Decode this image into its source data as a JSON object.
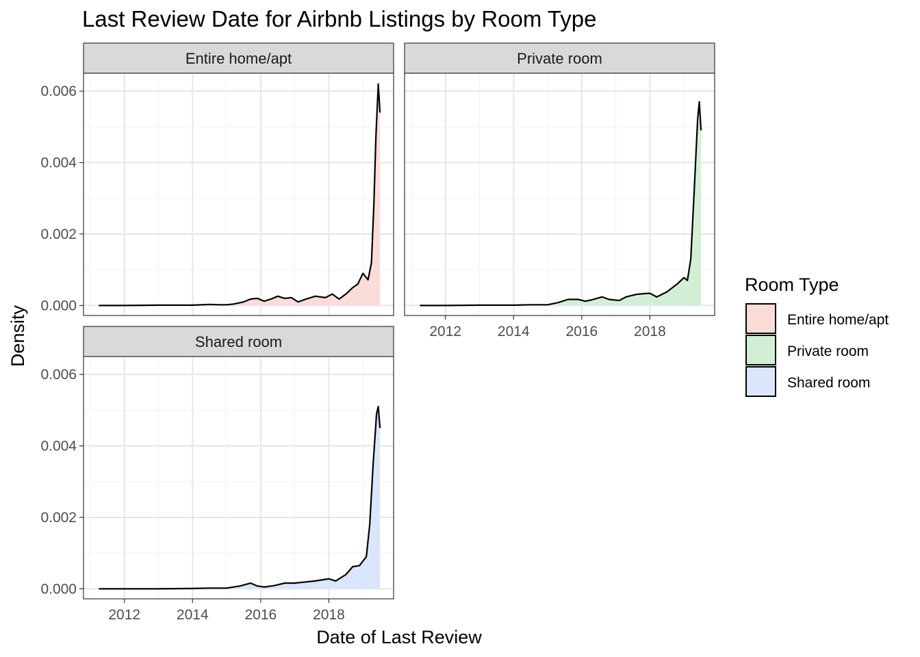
{
  "chart_data": {
    "type": "area",
    "title": "Last Review Date for Airbnb Listings by Room Type",
    "xlabel": "Date of Last Review",
    "ylabel": "Density",
    "x_unit": "year",
    "xlim": [
      2010.8,
      2019.9
    ],
    "ylim": [
      -0.00028,
      0.0065
    ],
    "x_ticks": [
      2012,
      2014,
      2016,
      2018
    ],
    "x_tick_labels": [
      "2012",
      "2014",
      "2016",
      "2018"
    ],
    "y_ticks": [
      0,
      0.002,
      0.004,
      0.006
    ],
    "y_tick_labels": [
      "0.000",
      "0.002",
      "0.004",
      "0.006"
    ],
    "grid": true,
    "facet_layout": "2x2",
    "legend": {
      "title": "Room Type",
      "position": "right",
      "items": [
        {
          "label": "Entire home/apt",
          "color": "#fcdcd8"
        },
        {
          "label": "Private room",
          "color": "#d2efd6"
        },
        {
          "label": "Shared room",
          "color": "#dbe5fc"
        }
      ]
    },
    "series": [
      {
        "name": "Entire home/apt",
        "fill": "#fcdcd8",
        "x": [
          2011.25,
          2012,
          2013,
          2014,
          2014.5,
          2014.8,
          2015,
          2015.2,
          2015.5,
          2015.7,
          2015.9,
          2016.1,
          2016.3,
          2016.5,
          2016.7,
          2016.9,
          2017.1,
          2017.3,
          2017.6,
          2017.9,
          2018.1,
          2018.3,
          2018.5,
          2018.7,
          2018.85,
          2019.0,
          2019.15,
          2019.25,
          2019.32,
          2019.38,
          2019.45,
          2019.5
        ],
        "y": [
          0,
          0,
          1e-05,
          1e-05,
          3e-05,
          2e-05,
          2e-05,
          4e-05,
          0.0001,
          0.00018,
          0.0002,
          0.00012,
          0.00018,
          0.00026,
          0.0002,
          0.00022,
          0.0001,
          0.00017,
          0.00026,
          0.00022,
          0.00032,
          0.00018,
          0.00032,
          0.0005,
          0.0006,
          0.0009,
          0.00072,
          0.0012,
          0.0028,
          0.0047,
          0.0062,
          0.0054
        ]
      },
      {
        "name": "Private room",
        "fill": "#d2efd6",
        "x": [
          2011.25,
          2012,
          2013,
          2014,
          2014.5,
          2015,
          2015.3,
          2015.6,
          2015.9,
          2016.1,
          2016.3,
          2016.6,
          2016.8,
          2017.1,
          2017.3,
          2017.6,
          2017.8,
          2018.0,
          2018.2,
          2018.5,
          2018.8,
          2019.0,
          2019.1,
          2019.2,
          2019.3,
          2019.4,
          2019.45,
          2019.5
        ],
        "y": [
          0,
          0,
          1e-05,
          1e-05,
          2e-05,
          2e-05,
          8e-05,
          0.00017,
          0.00017,
          0.00012,
          0.00016,
          0.00024,
          0.00017,
          0.00014,
          0.00024,
          0.00031,
          0.00033,
          0.00034,
          0.00024,
          0.00038,
          0.0006,
          0.00078,
          0.0007,
          0.0013,
          0.0032,
          0.0052,
          0.0057,
          0.0049
        ]
      },
      {
        "name": "Shared room",
        "fill": "#dbe5fc",
        "x": [
          2011.25,
          2012,
          2013,
          2014,
          2014.5,
          2015,
          2015.4,
          2015.7,
          2015.9,
          2016.1,
          2016.4,
          2016.7,
          2017.0,
          2017.3,
          2017.6,
          2018.0,
          2018.2,
          2018.5,
          2018.7,
          2018.9,
          2019.1,
          2019.2,
          2019.3,
          2019.4,
          2019.45,
          2019.5
        ],
        "y": [
          0,
          0,
          0,
          1e-05,
          2e-05,
          2e-05,
          8e-05,
          0.00016,
          8e-05,
          5e-05,
          9e-05,
          0.00016,
          0.00016,
          0.00019,
          0.00022,
          0.00028,
          0.00022,
          0.0004,
          0.00062,
          0.00065,
          0.0009,
          0.0018,
          0.0035,
          0.0049,
          0.0051,
          0.0045
        ]
      }
    ]
  }
}
